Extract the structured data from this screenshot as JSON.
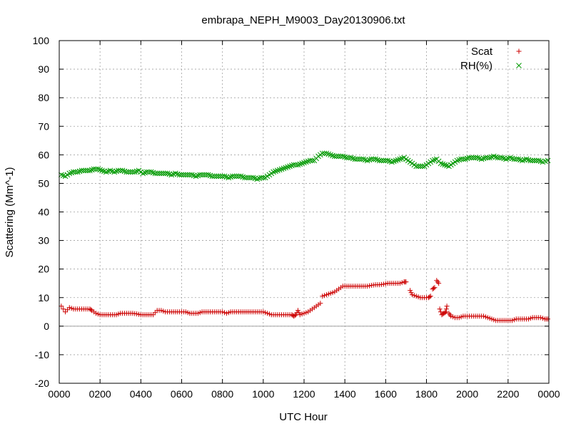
{
  "chart_data": {
    "type": "scatter",
    "title": "embrapa_NEPH_M9003_Day20130906.txt",
    "xlabel": "UTC Hour",
    "ylabel": "Scattering (Mm^-1)",
    "xlim": [
      0,
      24
    ],
    "ylim": [
      -20,
      100
    ],
    "grid": true,
    "legend_position": "top-right",
    "x_ticks": [
      0,
      2,
      4,
      6,
      8,
      10,
      12,
      14,
      16,
      18,
      20,
      22,
      24
    ],
    "x_tick_labels": [
      "0000",
      "0200",
      "0400",
      "0600",
      "0800",
      "1000",
      "1200",
      "1400",
      "1600",
      "1800",
      "2000",
      "2200",
      "0000"
    ],
    "y_ticks": [
      -20,
      -10,
      0,
      10,
      20,
      30,
      40,
      50,
      60,
      70,
      80,
      90,
      100
    ],
    "y_tick_labels": [
      "-20",
      "-10",
      "0",
      "10",
      "20",
      "30",
      "40",
      "50",
      "60",
      "70",
      "80",
      "90",
      "100"
    ],
    "zero_line": 0,
    "series": [
      {
        "name": "Scat",
        "marker": "plus",
        "color": "#cc0000",
        "points": [
          [
            0.1,
            7.0
          ],
          [
            0.3,
            5.0
          ],
          [
            0.5,
            6.5
          ],
          [
            0.7,
            6.0
          ],
          [
            0.9,
            6.0
          ],
          [
            1.1,
            6.0
          ],
          [
            1.3,
            6.0
          ],
          [
            1.5,
            6.0
          ],
          [
            1.6,
            5.5
          ],
          [
            1.8,
            4.5
          ],
          [
            2.0,
            4.0
          ],
          [
            2.2,
            4.0
          ],
          [
            2.4,
            4.0
          ],
          [
            2.6,
            4.0
          ],
          [
            2.8,
            4.0
          ],
          [
            3.0,
            4.5
          ],
          [
            3.2,
            4.5
          ],
          [
            3.4,
            4.5
          ],
          [
            3.6,
            4.5
          ],
          [
            3.8,
            4.3
          ],
          [
            4.0,
            4.0
          ],
          [
            4.2,
            4.0
          ],
          [
            4.4,
            4.0
          ],
          [
            4.6,
            4.0
          ],
          [
            4.8,
            5.5
          ],
          [
            5.0,
            5.5
          ],
          [
            5.2,
            5.0
          ],
          [
            5.4,
            5.0
          ],
          [
            5.6,
            5.0
          ],
          [
            5.8,
            5.0
          ],
          [
            6.0,
            5.0
          ],
          [
            6.2,
            5.0
          ],
          [
            6.4,
            4.5
          ],
          [
            6.6,
            4.5
          ],
          [
            6.8,
            4.5
          ],
          [
            7.0,
            5.0
          ],
          [
            7.2,
            5.0
          ],
          [
            7.4,
            5.0
          ],
          [
            7.6,
            5.0
          ],
          [
            7.8,
            5.0
          ],
          [
            8.0,
            5.0
          ],
          [
            8.2,
            4.5
          ],
          [
            8.4,
            5.0
          ],
          [
            8.6,
            5.0
          ],
          [
            8.8,
            5.0
          ],
          [
            9.0,
            5.0
          ],
          [
            9.2,
            5.0
          ],
          [
            9.4,
            5.0
          ],
          [
            9.6,
            5.0
          ],
          [
            9.8,
            5.0
          ],
          [
            10.0,
            5.0
          ],
          [
            10.2,
            4.5
          ],
          [
            10.4,
            4.0
          ],
          [
            10.6,
            4.0
          ],
          [
            10.8,
            4.0
          ],
          [
            11.0,
            4.0
          ],
          [
            11.2,
            4.0
          ],
          [
            11.4,
            4.0
          ],
          [
            11.5,
            3.5
          ],
          [
            11.6,
            4.0
          ],
          [
            11.7,
            5.5
          ],
          [
            11.8,
            4.0
          ],
          [
            12.0,
            4.5
          ],
          [
            12.2,
            5.0
          ],
          [
            12.4,
            6.0
          ],
          [
            12.6,
            7.0
          ],
          [
            12.8,
            8.0
          ],
          [
            12.9,
            10.5
          ],
          [
            13.1,
            11.0
          ],
          [
            13.3,
            11.5
          ],
          [
            13.5,
            12.0
          ],
          [
            13.7,
            13.0
          ],
          [
            13.9,
            14.0
          ],
          [
            14.1,
            14.0
          ],
          [
            14.3,
            14.0
          ],
          [
            14.5,
            14.0
          ],
          [
            14.7,
            14.0
          ],
          [
            14.9,
            14.0
          ],
          [
            15.1,
            14.0
          ],
          [
            15.3,
            14.3
          ],
          [
            15.5,
            14.5
          ],
          [
            15.7,
            14.5
          ],
          [
            15.9,
            14.7
          ],
          [
            16.1,
            15.0
          ],
          [
            16.3,
            15.0
          ],
          [
            16.5,
            15.0
          ],
          [
            16.7,
            15.0
          ],
          [
            16.9,
            15.5
          ],
          [
            17.0,
            15.5
          ],
          [
            17.2,
            12.5
          ],
          [
            17.3,
            11.0
          ],
          [
            17.5,
            10.5
          ],
          [
            17.7,
            10.0
          ],
          [
            17.9,
            10.0
          ],
          [
            18.1,
            10.0
          ],
          [
            18.2,
            10.5
          ],
          [
            18.3,
            13.0
          ],
          [
            18.4,
            13.5
          ],
          [
            18.5,
            16.0
          ],
          [
            18.6,
            15.0
          ],
          [
            18.65,
            6.0
          ],
          [
            18.75,
            4.0
          ],
          [
            18.85,
            4.5
          ],
          [
            18.95,
            5.0
          ],
          [
            19.0,
            7.0
          ],
          [
            19.1,
            4.5
          ],
          [
            19.2,
            3.5
          ],
          [
            19.4,
            3.0
          ],
          [
            19.6,
            3.0
          ],
          [
            19.8,
            3.5
          ],
          [
            20.0,
            3.5
          ],
          [
            20.2,
            3.5
          ],
          [
            20.4,
            3.5
          ],
          [
            20.6,
            3.5
          ],
          [
            20.8,
            3.5
          ],
          [
            21.0,
            3.0
          ],
          [
            21.2,
            2.5
          ],
          [
            21.4,
            2.0
          ],
          [
            21.6,
            2.0
          ],
          [
            21.8,
            2.0
          ],
          [
            22.0,
            2.0
          ],
          [
            22.2,
            2.0
          ],
          [
            22.4,
            2.5
          ],
          [
            22.6,
            2.5
          ],
          [
            22.8,
            2.5
          ],
          [
            23.0,
            2.5
          ],
          [
            23.2,
            3.0
          ],
          [
            23.4,
            3.0
          ],
          [
            23.6,
            3.0
          ],
          [
            23.8,
            2.5
          ],
          [
            23.95,
            2.5
          ]
        ]
      },
      {
        "name": "RH(%)",
        "marker": "cross",
        "color": "#009900",
        "points": [
          [
            0.1,
            53.0
          ],
          [
            0.3,
            52.5
          ],
          [
            0.5,
            53.5
          ],
          [
            0.7,
            54.0
          ],
          [
            0.9,
            54.0
          ],
          [
            1.1,
            54.5
          ],
          [
            1.3,
            54.5
          ],
          [
            1.5,
            54.5
          ],
          [
            1.7,
            55.0
          ],
          [
            1.9,
            55.0
          ],
          [
            2.1,
            54.5
          ],
          [
            2.3,
            54.0
          ],
          [
            2.5,
            54.5
          ],
          [
            2.7,
            54.0
          ],
          [
            2.9,
            54.5
          ],
          [
            3.1,
            54.5
          ],
          [
            3.3,
            54.0
          ],
          [
            3.5,
            54.0
          ],
          [
            3.7,
            54.0
          ],
          [
            3.9,
            54.5
          ],
          [
            4.1,
            53.5
          ],
          [
            4.3,
            54.0
          ],
          [
            4.5,
            54.0
          ],
          [
            4.7,
            53.5
          ],
          [
            4.9,
            53.5
          ],
          [
            5.1,
            53.5
          ],
          [
            5.3,
            53.5
          ],
          [
            5.5,
            53.0
          ],
          [
            5.7,
            53.5
          ],
          [
            5.9,
            53.0
          ],
          [
            6.1,
            53.0
          ],
          [
            6.3,
            53.0
          ],
          [
            6.5,
            53.0
          ],
          [
            6.7,
            52.5
          ],
          [
            6.9,
            53.0
          ],
          [
            7.1,
            53.0
          ],
          [
            7.3,
            53.0
          ],
          [
            7.5,
            52.5
          ],
          [
            7.7,
            52.5
          ],
          [
            7.9,
            52.5
          ],
          [
            8.1,
            52.5
          ],
          [
            8.3,
            52.0
          ],
          [
            8.5,
            52.5
          ],
          [
            8.7,
            52.5
          ],
          [
            8.9,
            52.5
          ],
          [
            9.1,
            52.0
          ],
          [
            9.3,
            52.0
          ],
          [
            9.5,
            52.0
          ],
          [
            9.7,
            51.5
          ],
          [
            9.9,
            52.0
          ],
          [
            10.1,
            52.0
          ],
          [
            10.3,
            53.0
          ],
          [
            10.5,
            54.0
          ],
          [
            10.7,
            54.5
          ],
          [
            10.9,
            55.0
          ],
          [
            11.1,
            55.5
          ],
          [
            11.3,
            56.0
          ],
          [
            11.5,
            56.5
          ],
          [
            11.7,
            56.5
          ],
          [
            11.9,
            57.0
          ],
          [
            12.1,
            57.5
          ],
          [
            12.3,
            58.0
          ],
          [
            12.5,
            58.0
          ],
          [
            12.7,
            59.5
          ],
          [
            12.9,
            60.5
          ],
          [
            13.1,
            60.5
          ],
          [
            13.3,
            60.0
          ],
          [
            13.5,
            59.5
          ],
          [
            13.7,
            59.5
          ],
          [
            13.9,
            59.5
          ],
          [
            14.1,
            59.0
          ],
          [
            14.3,
            59.0
          ],
          [
            14.5,
            58.5
          ],
          [
            14.7,
            58.5
          ],
          [
            14.9,
            58.5
          ],
          [
            15.1,
            58.0
          ],
          [
            15.3,
            58.5
          ],
          [
            15.5,
            58.5
          ],
          [
            15.7,
            58.0
          ],
          [
            15.9,
            58.0
          ],
          [
            16.1,
            58.0
          ],
          [
            16.3,
            57.5
          ],
          [
            16.5,
            58.0
          ],
          [
            16.7,
            58.5
          ],
          [
            16.9,
            59.0
          ],
          [
            17.1,
            58.0
          ],
          [
            17.3,
            57.0
          ],
          [
            17.5,
            56.0
          ],
          [
            17.7,
            56.0
          ],
          [
            17.9,
            56.0
          ],
          [
            18.1,
            57.0
          ],
          [
            18.3,
            58.0
          ],
          [
            18.5,
            58.5
          ],
          [
            18.7,
            57.0
          ],
          [
            18.9,
            56.5
          ],
          [
            19.1,
            56.0
          ],
          [
            19.3,
            57.0
          ],
          [
            19.5,
            58.0
          ],
          [
            19.7,
            58.5
          ],
          [
            19.9,
            58.5
          ],
          [
            20.1,
            59.0
          ],
          [
            20.3,
            59.0
          ],
          [
            20.5,
            59.0
          ],
          [
            20.7,
            58.5
          ],
          [
            20.9,
            59.0
          ],
          [
            21.1,
            59.0
          ],
          [
            21.3,
            59.5
          ],
          [
            21.5,
            59.0
          ],
          [
            21.7,
            59.0
          ],
          [
            21.9,
            58.5
          ],
          [
            22.1,
            59.0
          ],
          [
            22.3,
            58.5
          ],
          [
            22.5,
            58.5
          ],
          [
            22.7,
            58.0
          ],
          [
            22.9,
            58.5
          ],
          [
            23.1,
            58.0
          ],
          [
            23.3,
            58.0
          ],
          [
            23.5,
            58.0
          ],
          [
            23.7,
            57.5
          ],
          [
            23.95,
            58.0
          ]
        ]
      }
    ]
  }
}
